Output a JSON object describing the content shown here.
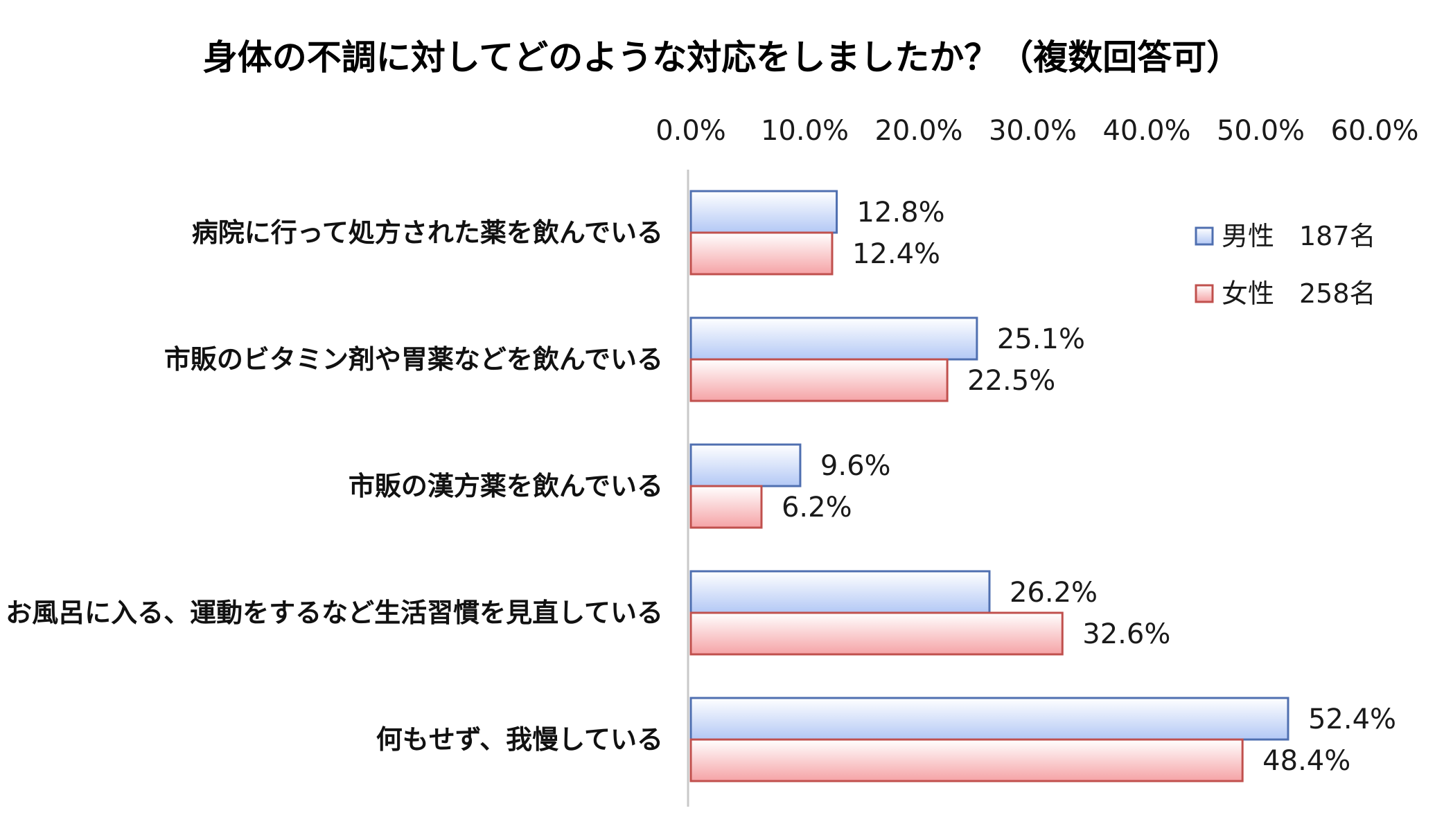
{
  "chart_data": {
    "type": "bar",
    "orientation": "horizontal",
    "title": "身体の不調に対してどのような対応をしましたか？（複数回答可）",
    "categories": [
      "病院に行って処方された薬を飲んでいる",
      "市販のビタミン剤や胃薬などを飲んでいる",
      "市販の漢方薬を飲んでいる",
      "お風呂に入る、運動をするなど生活習慣を見直している",
      "何もせず、我慢している"
    ],
    "series": [
      {
        "name": "男性",
        "count_label": "187名",
        "values": [
          12.8,
          25.1,
          9.6,
          26.2,
          52.4
        ],
        "value_labels": [
          "12.8%",
          "25.1%",
          "9.6%",
          "26.2%",
          "52.4%"
        ]
      },
      {
        "name": "女性",
        "count_label": "258名",
        "values": [
          12.4,
          22.5,
          6.2,
          32.6,
          48.4
        ],
        "value_labels": [
          "12.4%",
          "22.5%",
          "6.2%",
          "32.6%",
          "48.4%"
        ]
      }
    ],
    "xlim": [
      0,
      60
    ],
    "xticks": [
      0,
      10,
      20,
      30,
      40,
      50,
      60
    ],
    "xtick_labels": [
      "0.0%",
      "10.0%",
      "20.0%",
      "30.0%",
      "40.0%",
      "50.0%",
      "60.0%"
    ],
    "x_axis_position": "top",
    "grid": false,
    "legend_position": "top-right",
    "colors": {
      "男性_fill_top": "#ffffff",
      "男性_fill_bottom": "#b3c8f5",
      "男性_stroke": "#4f6fb0",
      "女性_fill_top": "#ffffff",
      "女性_fill_bottom": "#f5a3a6",
      "女性_stroke": "#c0504d"
    }
  }
}
